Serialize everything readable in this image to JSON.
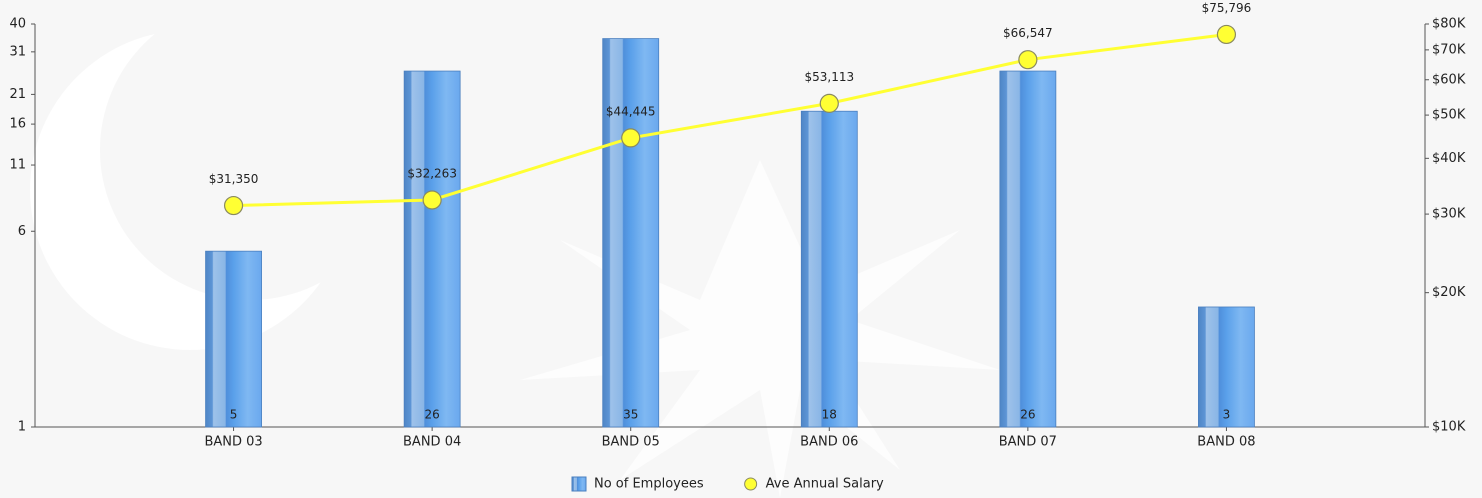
{
  "chart_data": {
    "type": "bar",
    "categories": [
      "BAND 03",
      "BAND 04",
      "BAND 05",
      "BAND 06",
      "BAND 07",
      "BAND 08"
    ],
    "series": [
      {
        "name": "No of Employees",
        "color": "#5b9bd5",
        "values": [
          5,
          26,
          35,
          18,
          26,
          3
        ]
      },
      {
        "name": "Ave Annual Salary",
        "color": "#ffff33",
        "type": "line",
        "axis": "y2",
        "values": [
          31350,
          32263,
          44445,
          53113,
          66547,
          75796
        ],
        "value_labels": [
          "$31,350",
          "$32,263",
          "$44,445",
          "$53,113",
          "$66,547",
          "$75,796"
        ]
      }
    ],
    "ylim": [
      1,
      40
    ],
    "yticks": [
      1,
      6,
      11,
      16,
      21,
      31,
      40
    ],
    "yscale": "log",
    "y2lim": [
      10000,
      80000
    ],
    "y2ticks": [
      {
        "value": 10000,
        "label": "$10K"
      },
      {
        "value": 20000,
        "label": "$20K"
      },
      {
        "value": 30000,
        "label": "$30K"
      },
      {
        "value": 40000,
        "label": "$40K"
      },
      {
        "value": 50000,
        "label": "$50K"
      },
      {
        "value": 60000,
        "label": "$60K"
      },
      {
        "value": 70000,
        "label": "$70K"
      },
      {
        "value": 80000,
        "label": "$80K"
      }
    ],
    "y2scale": "log",
    "legend": "bottom"
  }
}
